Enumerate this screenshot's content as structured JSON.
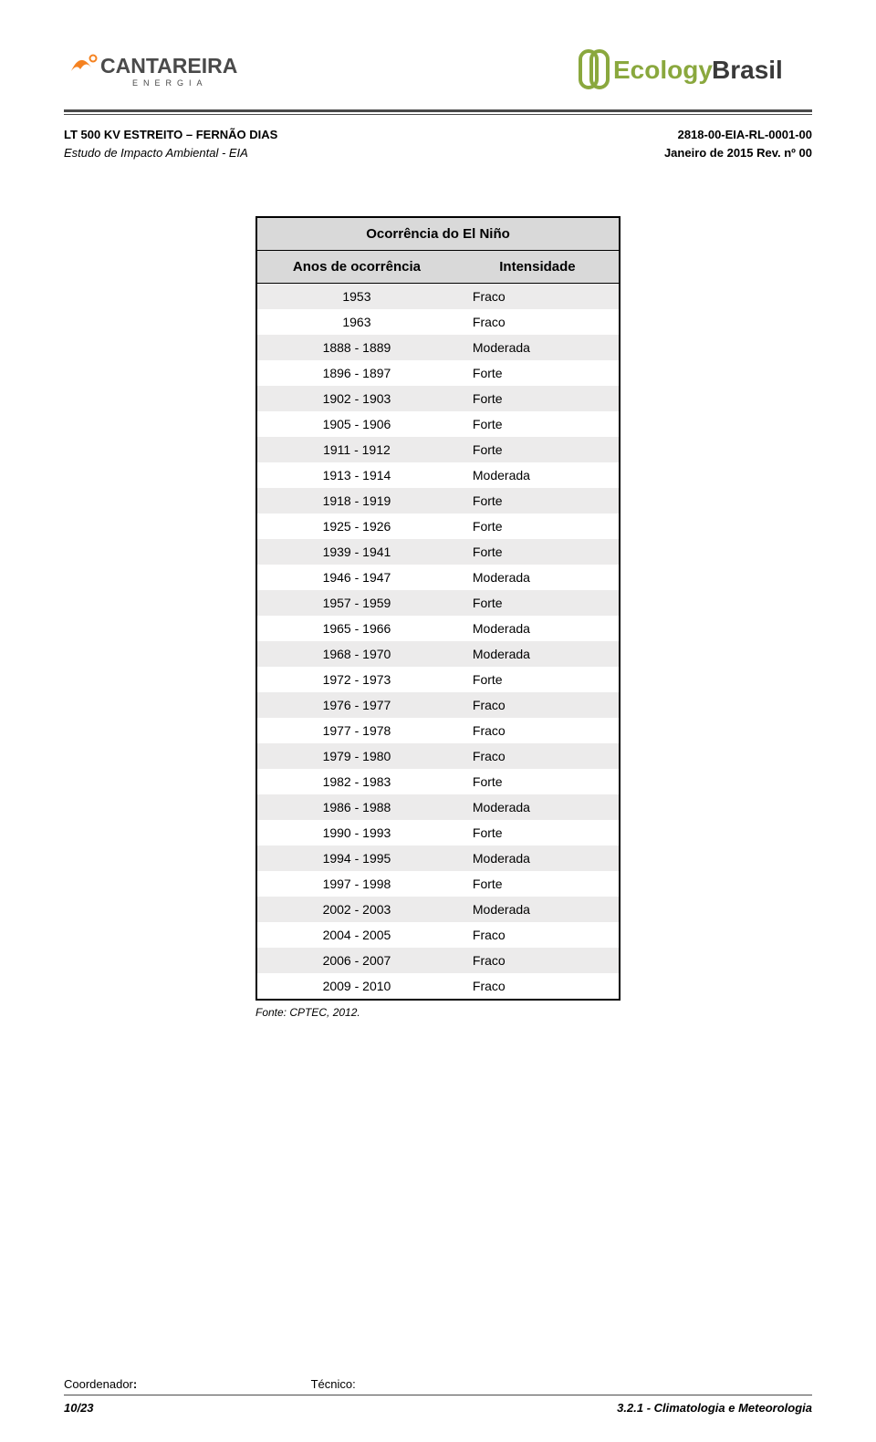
{
  "header": {
    "left_logo": {
      "brand": "CANTAREIRA",
      "sub": "E N E R G I A",
      "color_orange": "#f58220",
      "color_gray": "#4a4a4a"
    },
    "right_logo": {
      "brand_part1": "Ecology",
      "brand_part2": "Brasil",
      "color_green": "#8aa83e",
      "color_dark": "#3a3a3a"
    },
    "sub_left_l1": "LT 500 KV ESTREITO – FERNÃO DIAS",
    "sub_left_l2": "Estudo de Impacto Ambiental - EIA",
    "sub_right_l1": "2818-00-EIA-RL-0001-00",
    "sub_right_l2": "Janeiro de 2015  Rev. nº 00"
  },
  "table": {
    "title": "Ocorrência do El Niño",
    "col1": "Anos de ocorrência",
    "col2": "Intensidade",
    "rows": [
      {
        "y": "1953",
        "i": "Fraco"
      },
      {
        "y": "1963",
        "i": "Fraco"
      },
      {
        "y": "1888 - 1889",
        "i": "Moderada"
      },
      {
        "y": "1896 - 1897",
        "i": "Forte"
      },
      {
        "y": "1902 - 1903",
        "i": "Forte"
      },
      {
        "y": "1905 - 1906",
        "i": "Forte"
      },
      {
        "y": "1911 - 1912",
        "i": "Forte"
      },
      {
        "y": "1913 - 1914",
        "i": "Moderada"
      },
      {
        "y": "1918 - 1919",
        "i": "Forte"
      },
      {
        "y": "1925 - 1926",
        "i": "Forte"
      },
      {
        "y": "1939 - 1941",
        "i": "Forte"
      },
      {
        "y": "1946 - 1947",
        "i": "Moderada"
      },
      {
        "y": "1957 - 1959",
        "i": "Forte"
      },
      {
        "y": "1965 - 1966",
        "i": "Moderada"
      },
      {
        "y": "1968 - 1970",
        "i": "Moderada"
      },
      {
        "y": "1972 - 1973",
        "i": "Forte"
      },
      {
        "y": "1976 - 1977",
        "i": "Fraco"
      },
      {
        "y": "1977 - 1978",
        "i": "Fraco"
      },
      {
        "y": "1979 - 1980",
        "i": "Fraco"
      },
      {
        "y": "1982 - 1983",
        "i": "Forte"
      },
      {
        "y": "1986 - 1988",
        "i": "Moderada"
      },
      {
        "y": "1990 - 1993",
        "i": "Forte"
      },
      {
        "y": "1994 - 1995",
        "i": "Moderada"
      },
      {
        "y": "1997 - 1998",
        "i": "Forte"
      },
      {
        "y": "2002 - 2003",
        "i": "Moderada"
      },
      {
        "y": "2004 - 2005",
        "i": "Fraco"
      },
      {
        "y": "2006 - 2007",
        "i": "Fraco"
      },
      {
        "y": "2009 - 2010",
        "i": "Fraco"
      }
    ],
    "caption": "Fonte: CPTEC, 2012."
  },
  "footer": {
    "role1": "Coordenador",
    "role2": "Técnico:",
    "page": "10/23",
    "section": "3.2.1 - Climatologia e Meteorologia"
  },
  "colors": {
    "header_gray_bg": "#d9d9d9",
    "row_odd_bg": "#ecebeb",
    "row_even_bg": "#ffffff",
    "rule": "#4a4a4a"
  }
}
